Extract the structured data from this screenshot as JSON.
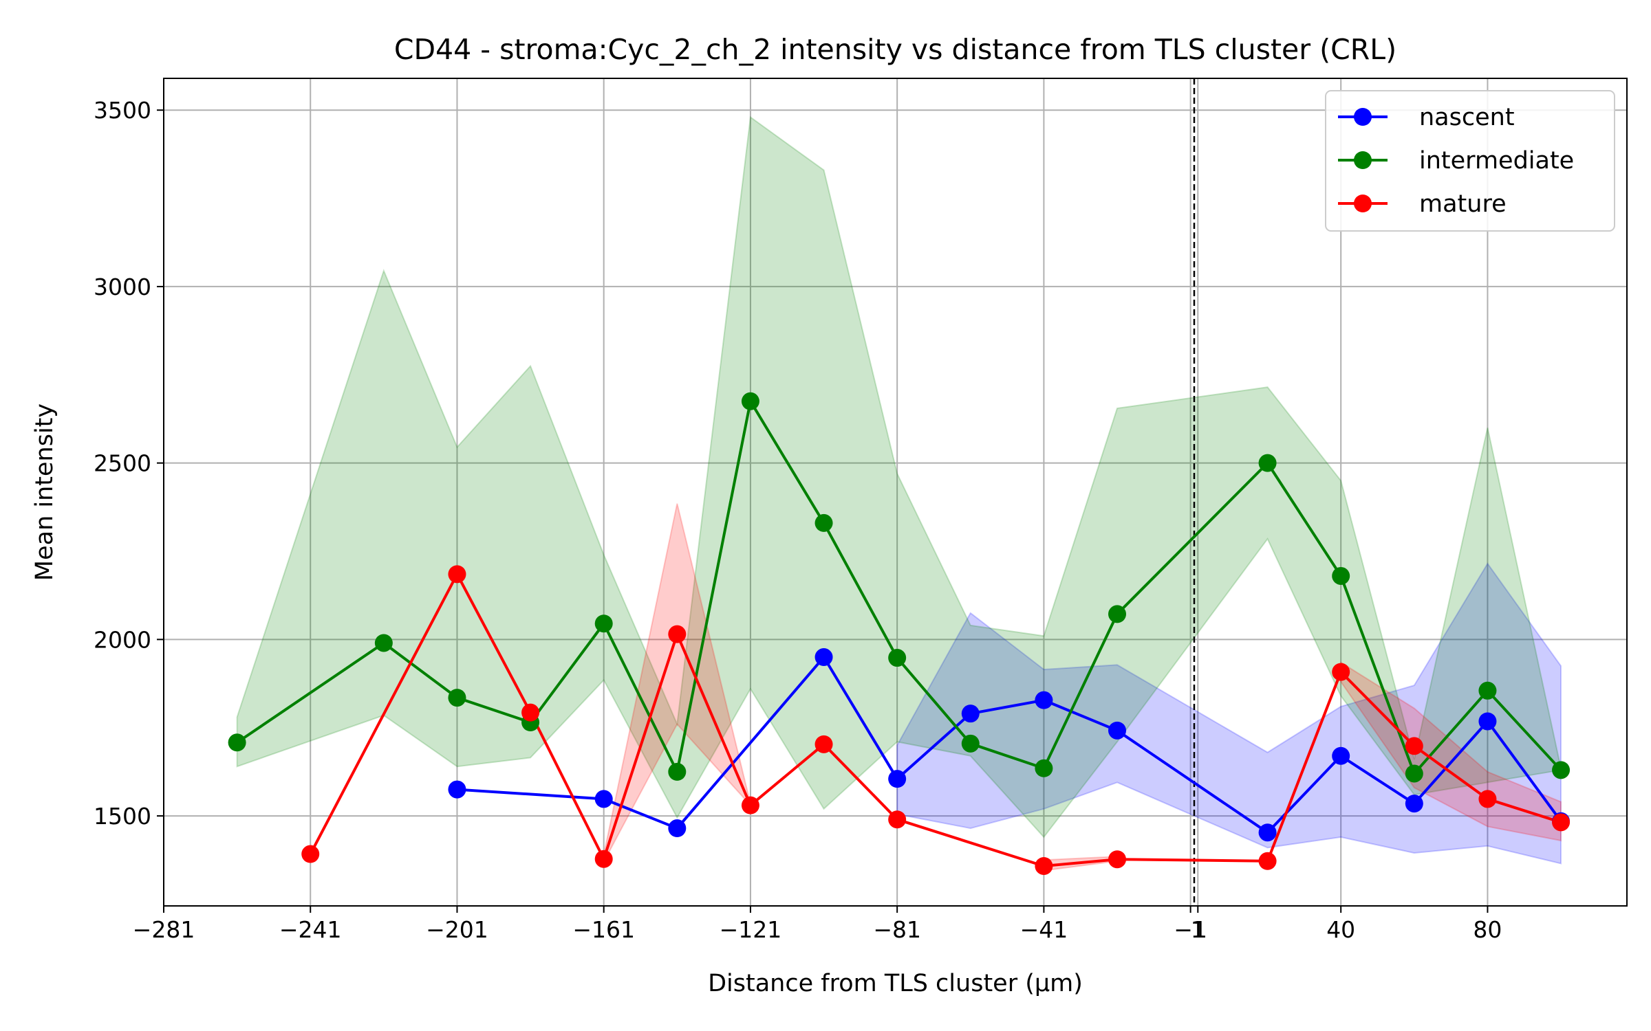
{
  "chart_data": {
    "type": "line",
    "title": "CD44 - stroma:Cyc_2_ch_2 intensity vs distance from TLS cluster (CRL)",
    "xlabel": "Distance from TLS cluster (μm)",
    "ylabel": "Mean intensity",
    "xlim": [
      -281,
      118
    ],
    "ylim": [
      1245,
      3590
    ],
    "x_ticks": [
      -281,
      -241,
      -201,
      -161,
      -121,
      -81,
      -41,
      -1,
      1,
      40,
      80
    ],
    "x_tick_labels": [
      "−281",
      "−241",
      "−201",
      "−161",
      "−121",
      "−81",
      "−41",
      "−1",
      "1",
      "40",
      "80"
    ],
    "y_ticks": [
      1500,
      2000,
      2500,
      3000,
      3500
    ],
    "y_tick_labels": [
      "1500",
      "2000",
      "2500",
      "3000",
      "3500"
    ],
    "grid": true,
    "reference_line": {
      "x": 0,
      "style": "dashed",
      "color": "#000000"
    },
    "legend_position": "top-right",
    "series": [
      {
        "name": "nascent",
        "color": "#0000ff",
        "fill_color": "#0000ff",
        "points": [
          {
            "x": -201,
            "y": 1575
          },
          {
            "x": -161,
            "y": 1548
          },
          {
            "x": -141,
            "y": 1465
          },
          {
            "x": -101,
            "y": 1950
          },
          {
            "x": -81,
            "y": 1605,
            "lo": 1505,
            "hi": 1700
          },
          {
            "x": -61,
            "y": 1790,
            "lo": 1465,
            "hi": 2075
          },
          {
            "x": -41,
            "y": 1828,
            "lo": 1520,
            "hi": 1915
          },
          {
            "x": -21,
            "y": 1742,
            "lo": 1595,
            "hi": 1928
          },
          {
            "x": 20,
            "y": 1453,
            "lo": 1410,
            "hi": 1680
          },
          {
            "x": 40,
            "y": 1670,
            "lo": 1440,
            "hi": 1810
          },
          {
            "x": 60,
            "y": 1535,
            "lo": 1395,
            "hi": 1870
          },
          {
            "x": 80,
            "y": 1768,
            "lo": 1415,
            "hi": 2215
          },
          {
            "x": 100,
            "y": 1485,
            "lo": 1365,
            "hi": 1925
          }
        ]
      },
      {
        "name": "intermediate",
        "color": "#008000",
        "fill_color": "#008000",
        "points": [
          {
            "x": -261,
            "y": 1708,
            "lo": 1640,
            "hi": 1780
          },
          {
            "x": -221,
            "y": 1990,
            "lo": 1785,
            "hi": 3045
          },
          {
            "x": -201,
            "y": 1835,
            "lo": 1640,
            "hi": 2545
          },
          {
            "x": -181,
            "y": 1765,
            "lo": 1665,
            "hi": 2775
          },
          {
            "x": -161,
            "y": 2045,
            "lo": 1885,
            "hi": 2240
          },
          {
            "x": -141,
            "y": 1625,
            "lo": 1495,
            "hi": 1760
          },
          {
            "x": -121,
            "y": 2675,
            "lo": 1860,
            "hi": 3480
          },
          {
            "x": -101,
            "y": 2330,
            "lo": 1520,
            "hi": 3330
          },
          {
            "x": -81,
            "y": 1948,
            "lo": 1710,
            "hi": 2470
          },
          {
            "x": -61,
            "y": 1705,
            "lo": 1670,
            "hi": 2040
          },
          {
            "x": -41,
            "y": 1635,
            "lo": 1440,
            "hi": 2010
          },
          {
            "x": -21,
            "y": 2072,
            "lo": 1710,
            "hi": 2655
          },
          {
            "x": 20,
            "y": 2500,
            "lo": 2285,
            "hi": 2715
          },
          {
            "x": 40,
            "y": 2180,
            "lo": 1840,
            "hi": 2450
          },
          {
            "x": 60,
            "y": 1620,
            "lo": 1560,
            "hi": 1660
          },
          {
            "x": 80,
            "y": 1855,
            "lo": 1595,
            "hi": 2600
          },
          {
            "x": 100,
            "y": 1630,
            "lo": 1630,
            "hi": 1635
          }
        ]
      },
      {
        "name": "mature",
        "color": "#ff0000",
        "fill_color": "#ff0000",
        "points": [
          {
            "x": -241,
            "y": 1392
          },
          {
            "x": -201,
            "y": 2185
          },
          {
            "x": -181,
            "y": 1793
          },
          {
            "x": -161,
            "y": 1378,
            "lo": 1370,
            "hi": 1390
          },
          {
            "x": -141,
            "y": 2015,
            "lo": 1760,
            "hi": 2385
          },
          {
            "x": -121,
            "y": 1530,
            "lo": 1530,
            "hi": 1535
          },
          {
            "x": -101,
            "y": 1703
          },
          {
            "x": -81,
            "y": 1490
          },
          {
            "x": -41,
            "y": 1358,
            "lo": 1345,
            "hi": 1375
          },
          {
            "x": -21,
            "y": 1377,
            "lo": 1372,
            "hi": 1385
          },
          {
            "x": 20,
            "y": 1372
          },
          {
            "x": 40,
            "y": 1908,
            "lo": 1880,
            "hi": 1935
          },
          {
            "x": 60,
            "y": 1698,
            "lo": 1580,
            "hi": 1805
          },
          {
            "x": 80,
            "y": 1548,
            "lo": 1470,
            "hi": 1625
          },
          {
            "x": 100,
            "y": 1482,
            "lo": 1430,
            "hi": 1540
          }
        ]
      }
    ]
  }
}
